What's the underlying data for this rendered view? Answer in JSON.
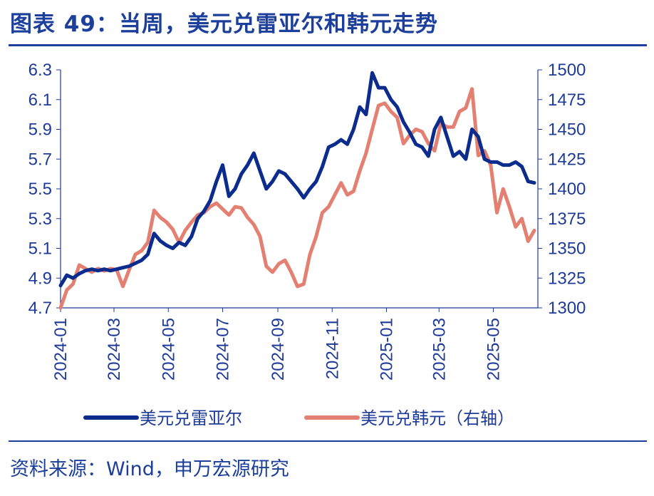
{
  "title": "图表 49：当周，美元兑雷亚尔和韩元走势",
  "source": "资料来源：Wind，申万宏源研究",
  "chart_data": {
    "type": "line",
    "x_tick_labels": [
      "2024-01",
      "2024-03",
      "2024-05",
      "2024-07",
      "2024-09",
      "2024-11",
      "2025-01",
      "2025-03",
      "2025-05"
    ],
    "y_left": {
      "ticks": [
        "6.3",
        "6.1",
        "5.9",
        "5.7",
        "5.5",
        "5.3",
        "5.1",
        "4.9",
        "4.7"
      ],
      "lim": [
        4.7,
        6.3
      ]
    },
    "y_right": {
      "ticks": [
        "1500",
        "1475",
        "1450",
        "1425",
        "1400",
        "1375",
        "1350",
        "1325",
        "1300"
      ],
      "lim": [
        1300,
        1500
      ]
    },
    "x_range": [
      "2024-01-01",
      "2025-06-20"
    ],
    "series": [
      {
        "name": "美元兑雷亚尔",
        "axis": "left",
        "color": "#0b2c8c",
        "points": [
          [
            "2024-01-01",
            4.85
          ],
          [
            "2024-01-08",
            4.92
          ],
          [
            "2024-01-15",
            4.9
          ],
          [
            "2024-01-22",
            4.93
          ],
          [
            "2024-01-29",
            4.95
          ],
          [
            "2024-02-05",
            4.96
          ],
          [
            "2024-02-12",
            4.95
          ],
          [
            "2024-02-19",
            4.96
          ],
          [
            "2024-02-26",
            4.95
          ],
          [
            "2024-03-04",
            4.96
          ],
          [
            "2024-03-11",
            4.97
          ],
          [
            "2024-03-18",
            4.98
          ],
          [
            "2024-03-25",
            5.0
          ],
          [
            "2024-04-01",
            5.02
          ],
          [
            "2024-04-08",
            5.06
          ],
          [
            "2024-04-15",
            5.2
          ],
          [
            "2024-04-22",
            5.15
          ],
          [
            "2024-04-29",
            5.12
          ],
          [
            "2024-05-06",
            5.1
          ],
          [
            "2024-05-13",
            5.14
          ],
          [
            "2024-05-20",
            5.12
          ],
          [
            "2024-05-27",
            5.18
          ],
          [
            "2024-06-03",
            5.3
          ],
          [
            "2024-06-10",
            5.35
          ],
          [
            "2024-06-17",
            5.42
          ],
          [
            "2024-06-24",
            5.55
          ],
          [
            "2024-07-01",
            5.66
          ],
          [
            "2024-07-08",
            5.45
          ],
          [
            "2024-07-15",
            5.5
          ],
          [
            "2024-07-22",
            5.6
          ],
          [
            "2024-07-29",
            5.66
          ],
          [
            "2024-08-05",
            5.74
          ],
          [
            "2024-08-12",
            5.62
          ],
          [
            "2024-08-19",
            5.5
          ],
          [
            "2024-08-26",
            5.55
          ],
          [
            "2024-09-02",
            5.62
          ],
          [
            "2024-09-09",
            5.6
          ],
          [
            "2024-09-16",
            5.55
          ],
          [
            "2024-09-23",
            5.5
          ],
          [
            "2024-09-30",
            5.44
          ],
          [
            "2024-10-07",
            5.5
          ],
          [
            "2024-10-14",
            5.55
          ],
          [
            "2024-10-21",
            5.65
          ],
          [
            "2024-10-28",
            5.78
          ],
          [
            "2024-11-04",
            5.8
          ],
          [
            "2024-11-11",
            5.83
          ],
          [
            "2024-11-18",
            5.8
          ],
          [
            "2024-11-25",
            5.9
          ],
          [
            "2024-12-02",
            6.05
          ],
          [
            "2024-12-09",
            6.0
          ],
          [
            "2024-12-16",
            6.28
          ],
          [
            "2024-12-23",
            6.18
          ],
          [
            "2024-12-30",
            6.18
          ],
          [
            "2025-01-06",
            6.1
          ],
          [
            "2025-01-13",
            6.05
          ],
          [
            "2025-01-20",
            5.95
          ],
          [
            "2025-01-27",
            5.88
          ],
          [
            "2025-02-03",
            5.8
          ],
          [
            "2025-02-10",
            5.78
          ],
          [
            "2025-02-17",
            5.72
          ],
          [
            "2025-02-24",
            5.9
          ],
          [
            "2025-03-03",
            5.98
          ],
          [
            "2025-03-10",
            5.85
          ],
          [
            "2025-03-17",
            5.72
          ],
          [
            "2025-03-24",
            5.75
          ],
          [
            "2025-03-31",
            5.7
          ],
          [
            "2025-04-07",
            5.9
          ],
          [
            "2025-04-14",
            5.85
          ],
          [
            "2025-04-21",
            5.7
          ],
          [
            "2025-04-28",
            5.68
          ],
          [
            "2025-05-05",
            5.68
          ],
          [
            "2025-05-12",
            5.66
          ],
          [
            "2025-05-19",
            5.66
          ],
          [
            "2025-05-26",
            5.68
          ],
          [
            "2025-06-02",
            5.65
          ],
          [
            "2025-06-09",
            5.55
          ],
          [
            "2025-06-16",
            5.54
          ]
        ]
      },
      {
        "name": "美元兑韩元（右轴）",
        "axis": "right",
        "color": "#e48072",
        "points": [
          [
            "2024-01-01",
            1300
          ],
          [
            "2024-01-08",
            1315
          ],
          [
            "2024-01-15",
            1320
          ],
          [
            "2024-01-22",
            1336
          ],
          [
            "2024-01-29",
            1333
          ],
          [
            "2024-02-05",
            1330
          ],
          [
            "2024-02-12",
            1333
          ],
          [
            "2024-02-19",
            1331
          ],
          [
            "2024-02-26",
            1333
          ],
          [
            "2024-03-04",
            1332
          ],
          [
            "2024-03-11",
            1318
          ],
          [
            "2024-03-18",
            1332
          ],
          [
            "2024-03-25",
            1345
          ],
          [
            "2024-04-01",
            1348
          ],
          [
            "2024-04-08",
            1355
          ],
          [
            "2024-04-15",
            1382
          ],
          [
            "2024-04-22",
            1376
          ],
          [
            "2024-04-29",
            1372
          ],
          [
            "2024-05-06",
            1366
          ],
          [
            "2024-05-13",
            1355
          ],
          [
            "2024-05-20",
            1365
          ],
          [
            "2024-05-27",
            1372
          ],
          [
            "2024-06-03",
            1378
          ],
          [
            "2024-06-10",
            1380
          ],
          [
            "2024-06-17",
            1385
          ],
          [
            "2024-06-24",
            1388
          ],
          [
            "2024-07-01",
            1383
          ],
          [
            "2024-07-08",
            1378
          ],
          [
            "2024-07-15",
            1385
          ],
          [
            "2024-07-22",
            1384
          ],
          [
            "2024-07-29",
            1376
          ],
          [
            "2024-08-05",
            1370
          ],
          [
            "2024-08-12",
            1360
          ],
          [
            "2024-08-19",
            1335
          ],
          [
            "2024-08-26",
            1330
          ],
          [
            "2024-09-02",
            1337
          ],
          [
            "2024-09-09",
            1340
          ],
          [
            "2024-09-16",
            1330
          ],
          [
            "2024-09-23",
            1318
          ],
          [
            "2024-09-30",
            1320
          ],
          [
            "2024-10-07",
            1345
          ],
          [
            "2024-10-14",
            1360
          ],
          [
            "2024-10-21",
            1380
          ],
          [
            "2024-10-28",
            1385
          ],
          [
            "2024-11-04",
            1395
          ],
          [
            "2024-11-11",
            1405
          ],
          [
            "2024-11-18",
            1395
          ],
          [
            "2024-11-25",
            1398
          ],
          [
            "2024-12-02",
            1415
          ],
          [
            "2024-12-09",
            1430
          ],
          [
            "2024-12-16",
            1450
          ],
          [
            "2024-12-23",
            1470
          ],
          [
            "2024-12-30",
            1472
          ],
          [
            "2025-01-06",
            1465
          ],
          [
            "2025-01-13",
            1460
          ],
          [
            "2025-01-20",
            1438
          ],
          [
            "2025-01-27",
            1445
          ],
          [
            "2025-02-03",
            1450
          ],
          [
            "2025-02-10",
            1448
          ],
          [
            "2025-02-17",
            1438
          ],
          [
            "2025-02-24",
            1432
          ],
          [
            "2025-03-03",
            1455
          ],
          [
            "2025-03-10",
            1452
          ],
          [
            "2025-03-17",
            1452
          ],
          [
            "2025-03-24",
            1465
          ],
          [
            "2025-03-31",
            1468
          ],
          [
            "2025-04-07",
            1484
          ],
          [
            "2025-04-14",
            1428
          ],
          [
            "2025-04-21",
            1432
          ],
          [
            "2025-04-28",
            1420
          ],
          [
            "2025-05-05",
            1380
          ],
          [
            "2025-05-12",
            1400
          ],
          [
            "2025-05-19",
            1385
          ],
          [
            "2025-05-26",
            1368
          ],
          [
            "2025-06-02",
            1375
          ],
          [
            "2025-06-09",
            1356
          ],
          [
            "2025-06-16",
            1365
          ]
        ]
      }
    ]
  }
}
